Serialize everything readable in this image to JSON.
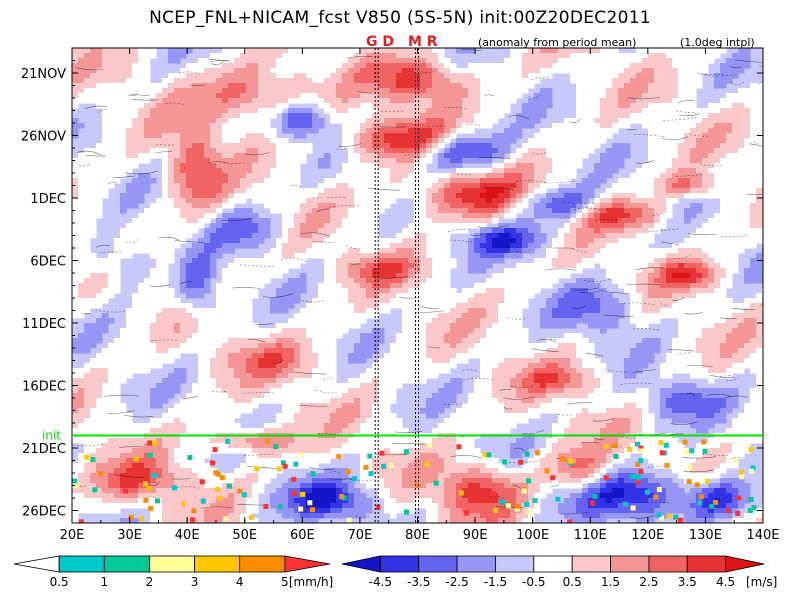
{
  "header": {
    "title": "NCEP_FNL+NICAM_fcst V850 (5S-5N) init:00Z20DEC2011",
    "note_anomaly": "(anomaly from period mean)",
    "note_interp": "(1.0deg intpl)",
    "marker_gd": "G D",
    "marker_mr": "M R"
  },
  "chart_data": {
    "type": "heatmap",
    "title": "NCEP_FNL+NICAM_fcst V850 (5S-5N) init:00Z20DEC2011",
    "xlabel": "",
    "ylabel": "",
    "x_ticks": [
      "20E",
      "30E",
      "40E",
      "50E",
      "60E",
      "70E",
      "80E",
      "90E",
      "100E",
      "110E",
      "120E",
      "130E",
      "140E"
    ],
    "x_tick_values": [
      20,
      30,
      40,
      50,
      60,
      70,
      80,
      90,
      100,
      110,
      120,
      130,
      140
    ],
    "xlim": [
      20,
      140
    ],
    "y_ticks": [
      "21NOV",
      "26NOV",
      "1DEC",
      "6DEC",
      "11DEC",
      "16DEC",
      "21DEC",
      "26DEC"
    ],
    "y_tick_values": [
      "2011-11-21",
      "2011-11-26",
      "2011-12-01",
      "2011-12-06",
      "2011-12-11",
      "2011-12-16",
      "2011-12-21",
      "2011-12-26"
    ],
    "ylim": [
      "2011-11-19",
      "2011-12-27"
    ],
    "init_label": "init",
    "init_date": "2011-12-20",
    "init_color": "#00dd00",
    "reference_lines_lon": [
      73,
      80
    ],
    "wind_colorbar": {
      "unit": "[m/s]",
      "tick_labels": [
        "-4.5",
        "-3.5",
        "-2.5",
        "-1.5",
        "-0.5",
        "0.5",
        "1.5",
        "2.5",
        "3.5",
        "4.5"
      ],
      "colors": [
        "#1414c8",
        "#3232e6",
        "#6464f0",
        "#9696f5",
        "#c8c8fa",
        "#ffffff",
        "#fac8c8",
        "#f59696",
        "#f06464",
        "#e63232",
        "#dc1414"
      ]
    },
    "rain_colorbar": {
      "unit": "[mm/h]",
      "tick_labels": [
        "0.5",
        "1",
        "2",
        "3",
        "4",
        "5"
      ],
      "colors": [
        "#ffffff",
        "#00c8c8",
        "#00c896",
        "#ffff96",
        "#ffc800",
        "#ff8c00",
        "#ff3232"
      ]
    }
  }
}
